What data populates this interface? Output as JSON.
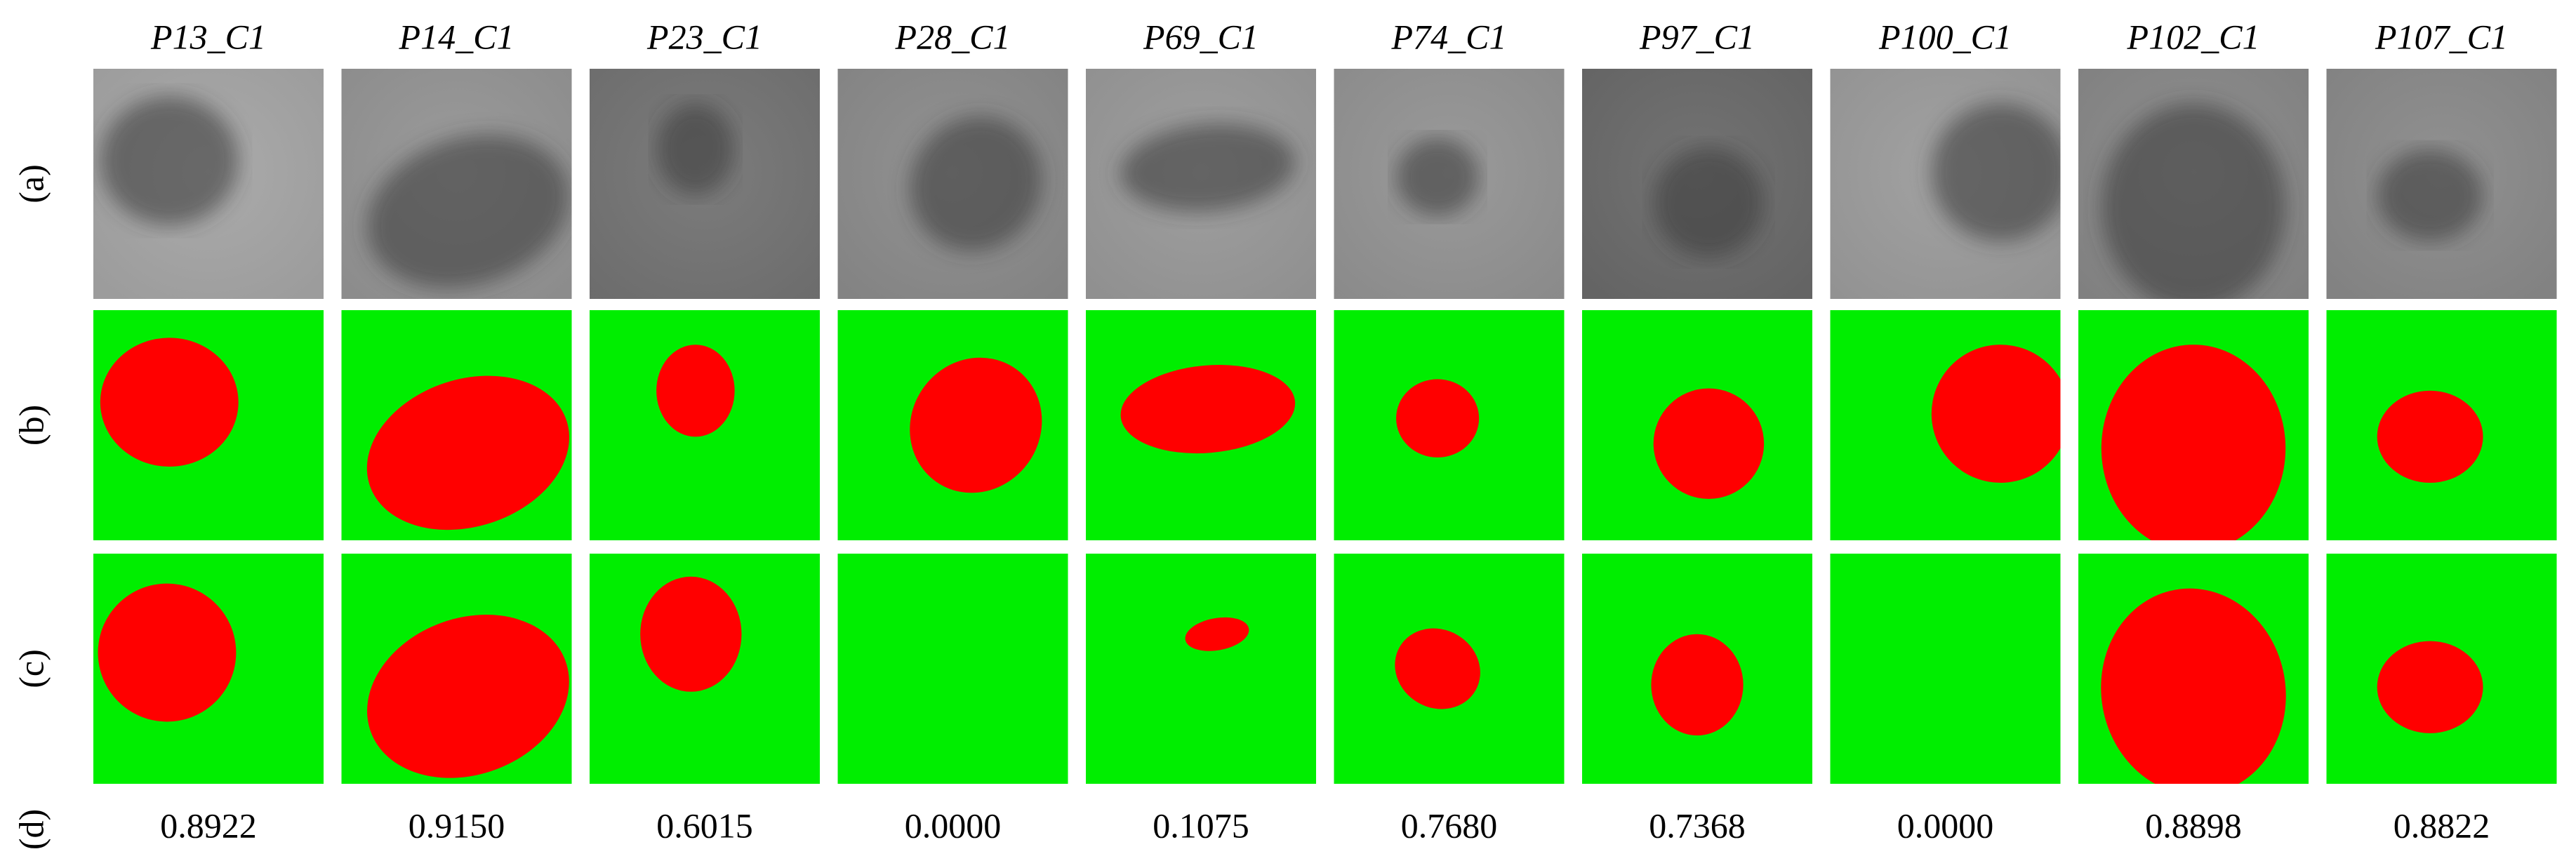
{
  "row_labels": [
    "(a)",
    "(b)",
    "(c)",
    "(d)"
  ],
  "columns": [
    {
      "title": "P13_C1",
      "score": "0.8922"
    },
    {
      "title": "P14_C1",
      "score": "0.9150"
    },
    {
      "title": "P23_C1",
      "score": "0.6015"
    },
    {
      "title": "P28_C1",
      "score": "0.0000"
    },
    {
      "title": "P69_C1",
      "score": "0.1075"
    },
    {
      "title": "P74_C1",
      "score": "0.7680"
    },
    {
      "title": "P97_C1",
      "score": "0.7368"
    },
    {
      "title": "P100_C1",
      "score": "0.0000"
    },
    {
      "title": "P102_C1",
      "score": "0.8898"
    },
    {
      "title": "P107_C1",
      "score": "0.8822"
    }
  ]
}
